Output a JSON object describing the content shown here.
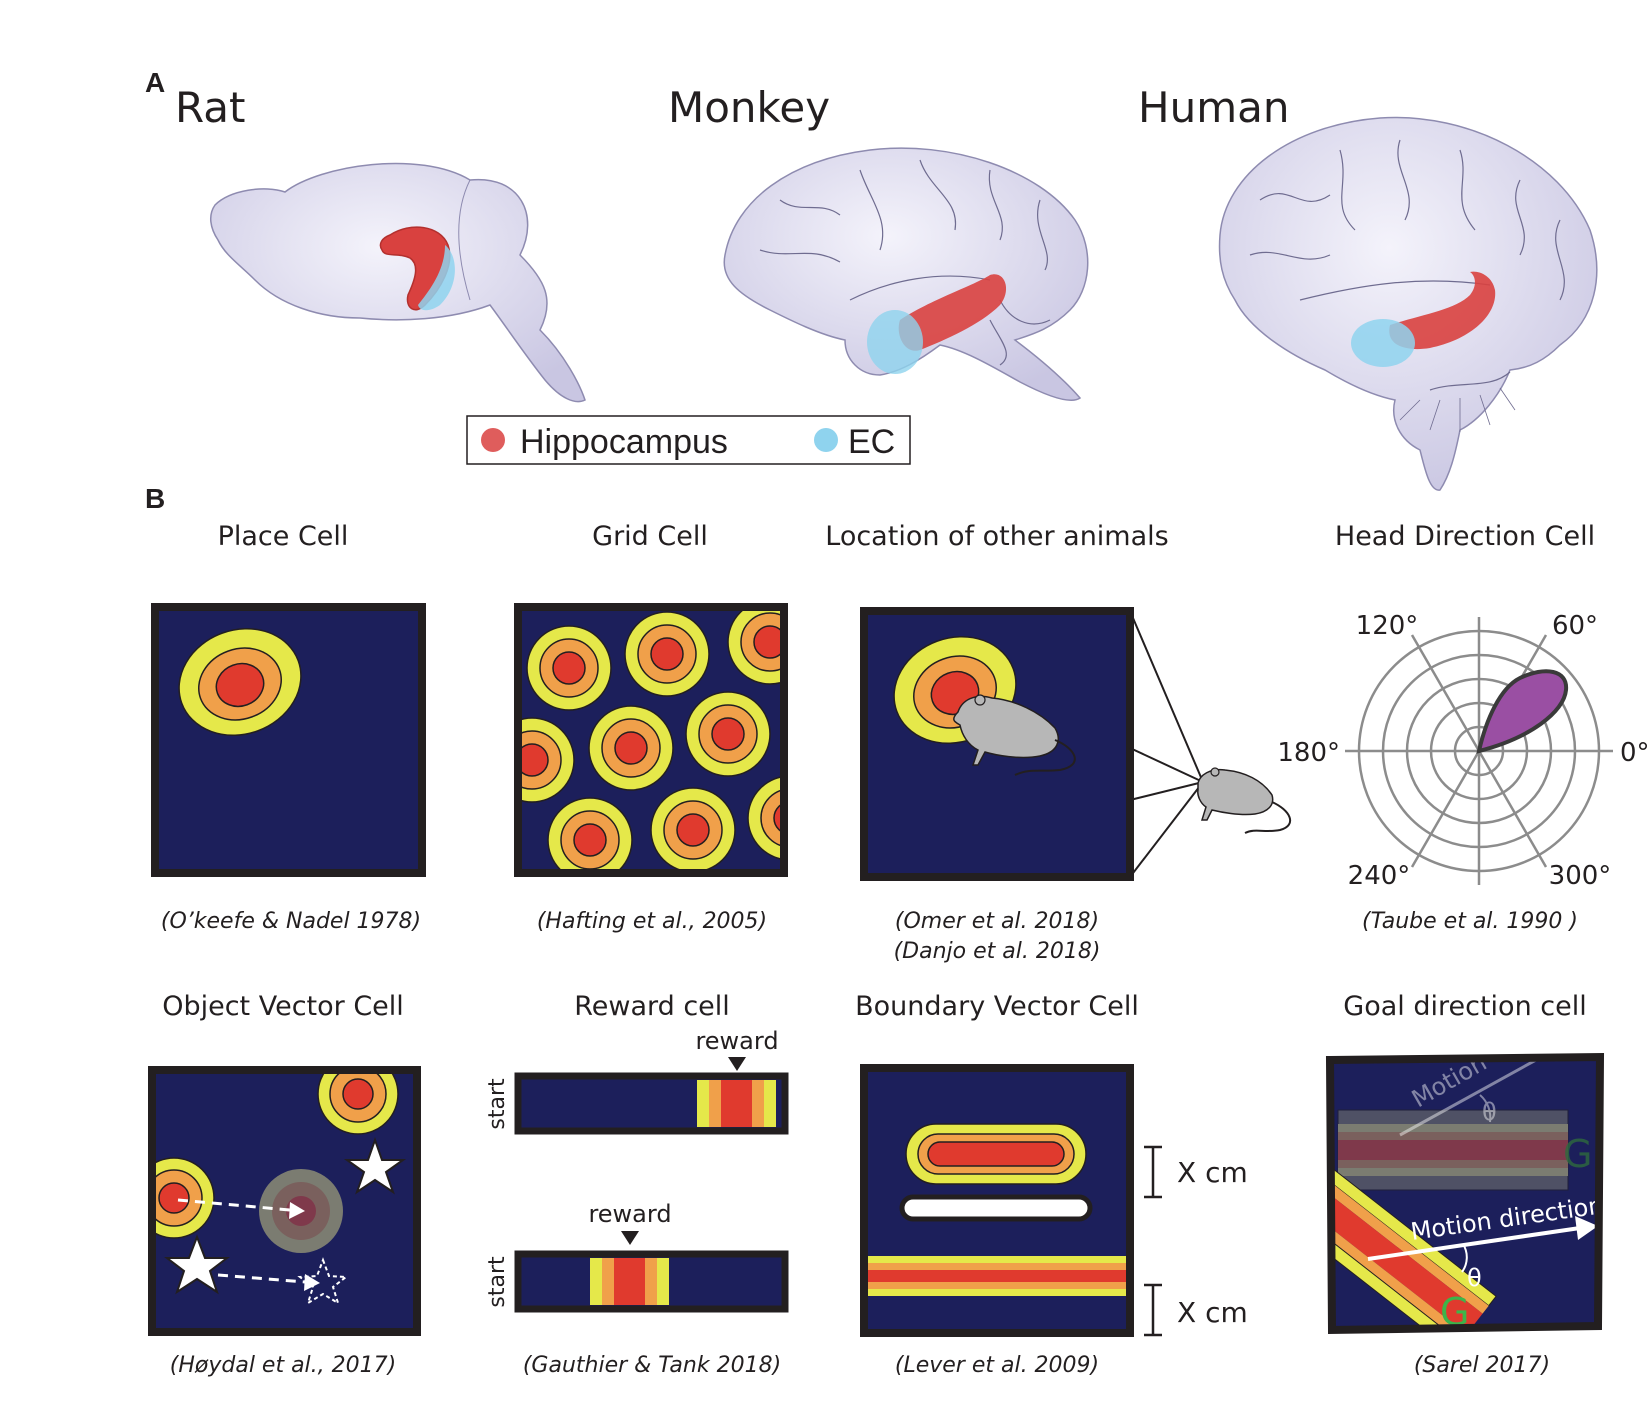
{
  "panelA": {
    "letter": "A",
    "species": [
      "Rat",
      "Monkey",
      "Human"
    ],
    "legend": {
      "hippocampus": "Hippocampus",
      "ec": "EC"
    }
  },
  "panelB": {
    "letter": "B",
    "cells": [
      {
        "title": "Place Cell",
        "citation": "(O’keefe & Nadel 1978)"
      },
      {
        "title": "Grid Cell",
        "citation": "(Hafting et al., 2005)"
      },
      {
        "title": "Location of other animals",
        "citation": "(Omer et al. 2018)",
        "citation2": "(Danjo et al. 2018)"
      },
      {
        "title": "Head Direction Cell",
        "citation": "(Taube et al. 1990 )"
      },
      {
        "title": "Object Vector Cell",
        "citation": "(Høydal et al., 2017)"
      },
      {
        "title": "Reward cell",
        "citation": "(Gauthier & Tank 2018)"
      },
      {
        "title": "Boundary Vector Cell",
        "citation": "(Lever et al. 2009)"
      },
      {
        "title": "Goal direction cell",
        "citation": "(Sarel 2017)"
      }
    ],
    "polar_angles": [
      "120°",
      "60°",
      "180°",
      "0°",
      "240°",
      "300°"
    ],
    "reward_labels": {
      "reward": "reward",
      "start": "start"
    },
    "boundary_distance": "X cm",
    "goal": {
      "motion": "Motion",
      "motion_direction": "Motion direction",
      "theta": "θ",
      "goal_marker": "G"
    }
  },
  "colors": {
    "arena": "#1c1f5b",
    "field_red": "#e03a2e",
    "field_orange": "#f0a04a",
    "field_yellow": "#e5e84a",
    "hippocampus": "#d9413f",
    "ec": "#8fd3ee",
    "brain": "#d4d2ea",
    "tuning": "#9a4fa3"
  }
}
